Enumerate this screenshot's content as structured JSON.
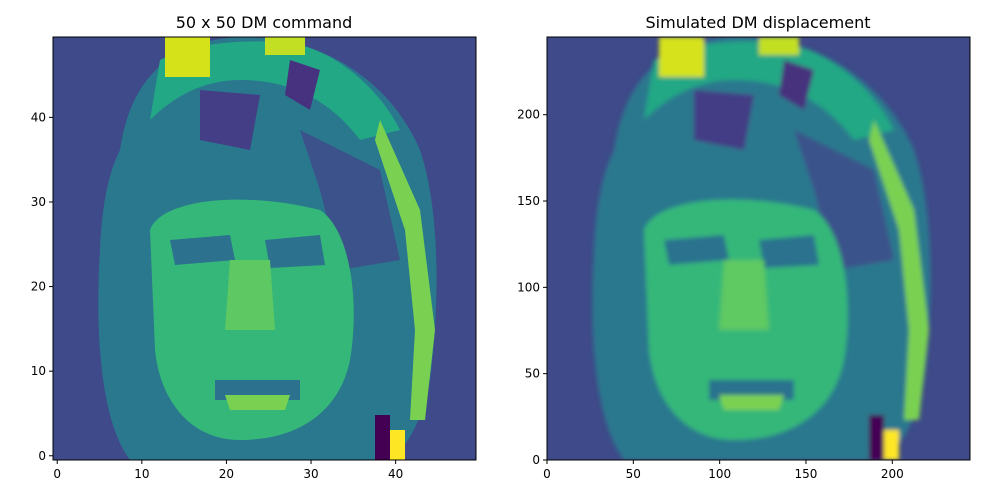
{
  "chart_data": [
    {
      "type": "heatmap",
      "title": "50 x 50 DM command",
      "colormap": "viridis",
      "xlim": [
        -0.5,
        49.5
      ],
      "ylim": [
        -0.5,
        49.5
      ],
      "xticks": [
        0,
        10,
        20,
        30,
        40
      ],
      "xtick_labels": [
        "0",
        "10",
        "20",
        "30",
        "40"
      ],
      "yticks": [
        0,
        10,
        20,
        30,
        40
      ],
      "ytick_labels": [
        "0",
        "10",
        "20",
        "30",
        "40"
      ],
      "grid_size": 50,
      "image_content": "pixelated grayscale portrait of a face mapped to viridis colormap"
    },
    {
      "type": "heatmap",
      "title": "Simulated DM displacement",
      "colormap": "viridis",
      "xlim": [
        0,
        245
      ],
      "ylim": [
        0,
        245
      ],
      "xticks": [
        0,
        50,
        100,
        150,
        200
      ],
      "xtick_labels": [
        "0",
        "50",
        "100",
        "150",
        "200"
      ],
      "yticks": [
        0,
        50,
        100,
        150,
        200
      ],
      "ytick_labels": [
        "0",
        "50",
        "100",
        "150",
        "200"
      ],
      "grid_size": 245,
      "image_content": "smoothed portrait of the same face mapped to viridis colormap"
    }
  ]
}
